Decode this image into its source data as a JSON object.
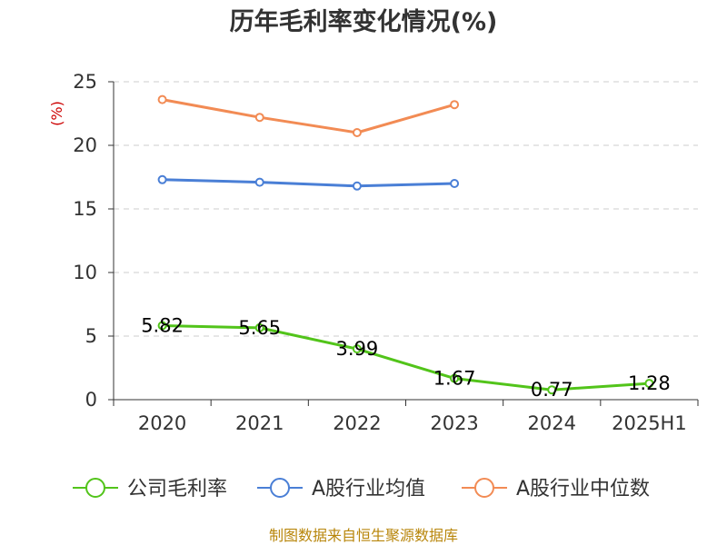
{
  "chart_data": {
    "type": "line",
    "title": "历年毛利率变化情况(%)",
    "ylabel": "(%)",
    "categories": [
      "2020",
      "2021",
      "2022",
      "2023",
      "2024",
      "2025H1"
    ],
    "yticks": [
      "0",
      "5",
      "10",
      "15",
      "20",
      "25"
    ],
    "ylim": [
      0,
      25
    ],
    "grid": "horizontal-dashed",
    "legend_position": "bottom",
    "series": [
      {
        "name": "公司毛利率",
        "color": "#52c41a",
        "values": [
          5.82,
          5.65,
          3.99,
          1.67,
          0.77,
          1.28
        ],
        "data_labels": [
          "5.82",
          "5.65",
          "3.99",
          "1.67",
          "0.77",
          "1.28"
        ]
      },
      {
        "name": "A股行业均值",
        "color": "#4a7fd6",
        "values": [
          17.3,
          17.1,
          16.8,
          17.0,
          null,
          null
        ]
      },
      {
        "name": "A股行业中位数",
        "color": "#f28b54",
        "values": [
          23.6,
          22.2,
          21.0,
          23.2,
          null,
          null
        ]
      }
    ],
    "source": "制图数据来自恒生聚源数据库"
  }
}
